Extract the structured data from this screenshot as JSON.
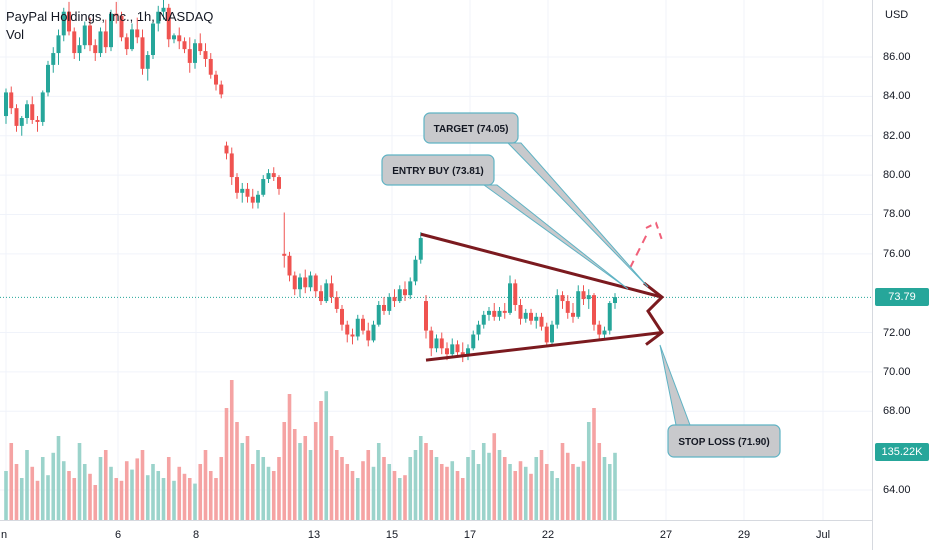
{
  "legend": {
    "symbol": "PayPal Holdings, Inc., 1h, NASDAQ",
    "volume_label": "Vol"
  },
  "price_axis": {
    "unit": "USD",
    "ticks": [
      "86.00",
      "84.00",
      "82.00",
      "80.00",
      "78.00",
      "76.00",
      "72.00",
      "70.00",
      "68.00",
      "64.00"
    ],
    "current_price": "73.79",
    "current_volume": "135.22K"
  },
  "time_axis": {
    "ticks": [
      "n",
      "6",
      "8",
      "13",
      "15",
      "17",
      "22",
      "27",
      "29",
      "Jul"
    ]
  },
  "annotations": {
    "target": "TARGET (74.05)",
    "entry": "ENTRY BUY (73.81)",
    "stop": "STOP LOSS (71.90)"
  },
  "colors": {
    "up": "#26a69a",
    "down": "#ef5350",
    "up_volume": "#9bd3cb",
    "down_volume": "#f5a3a3",
    "trendline": "#7b1a1f",
    "callout_fill": "#c8c9cc",
    "callout_border": "#5fb3c4",
    "price_badge": "#26a69a"
  },
  "chart_data": {
    "type": "candlestick",
    "x_unit": "hourly bars",
    "y_range": [
      63,
      89
    ],
    "candles": [
      [
        83,
        84.4,
        82.6,
        84.2
      ],
      [
        84.2,
        84.5,
        83.1,
        83.4
      ],
      [
        83.4,
        83.6,
        82.2,
        82.5
      ],
      [
        82.5,
        83,
        82,
        82.9
      ],
      [
        82.9,
        83.8,
        82.6,
        83.6
      ],
      [
        83.6,
        84,
        82.6,
        82.8
      ],
      [
        82.8,
        83,
        82.2,
        82.7
      ],
      [
        82.7,
        84.3,
        82.5,
        84.2
      ],
      [
        84.2,
        85.8,
        84,
        85.6
      ],
      [
        85.6,
        86.5,
        85.2,
        86.2
      ],
      [
        86.2,
        87.4,
        85.6,
        87.1
      ],
      [
        87.1,
        88.5,
        86.8,
        88.3
      ],
      [
        88.3,
        88.8,
        87.1,
        87.3
      ],
      [
        87.3,
        87.5,
        85.9,
        86.2
      ],
      [
        86.2,
        87,
        85.8,
        86.6
      ],
      [
        86.6,
        87.8,
        86.4,
        87.6
      ],
      [
        87.6,
        88,
        86.3,
        86.6
      ],
      [
        86.6,
        86.9,
        85.8,
        86.2
      ],
      [
        86.2,
        87.5,
        86,
        87.3
      ],
      [
        87.3,
        87.9,
        86.2,
        86.5
      ],
      [
        86.5,
        88.4,
        86.3,
        88.2
      ],
      [
        88.2,
        88.8,
        87.7,
        88.1
      ],
      [
        88.1,
        88.3,
        86.8,
        87
      ],
      [
        87,
        87.2,
        86.1,
        86.4
      ],
      [
        86.4,
        87.7,
        86.3,
        87.4
      ],
      [
        87.4,
        88,
        86.7,
        87
      ],
      [
        87,
        87.4,
        85.1,
        85.4
      ],
      [
        85.4,
        86.3,
        84.8,
        86.1
      ],
      [
        86.1,
        87.9,
        85.9,
        87.7
      ],
      [
        87.7,
        88.6,
        87.3,
        88.3
      ],
      [
        88.3,
        89,
        87.9,
        88.5
      ],
      [
        88.5,
        88.7,
        86.5,
        86.9
      ],
      [
        86.9,
        87.2,
        86.7,
        87.1
      ],
      [
        87.1,
        87.5,
        86.4,
        86.8
      ],
      [
        86.8,
        87,
        86.2,
        86.4
      ],
      [
        86.4,
        87,
        85.2,
        85.7
      ],
      [
        85.7,
        86.9,
        85.4,
        86.7
      ],
      [
        86.7,
        87.2,
        86.1,
        86.3
      ],
      [
        86.3,
        86.7,
        85.5,
        85.9
      ],
      [
        85.9,
        86.2,
        84.9,
        85.1
      ],
      [
        85.1,
        85.3,
        84.3,
        84.6
      ],
      [
        84.6,
        84.8,
        83.9,
        84.1
      ],
      [
        81.5,
        81.7,
        80.8,
        81.1
      ],
      [
        81.1,
        81.4,
        79.5,
        79.9
      ],
      [
        79.9,
        80.1,
        78.8,
        79.1
      ],
      [
        79.1,
        79.6,
        78.6,
        79.3
      ],
      [
        79.3,
        79.6,
        78.6,
        78.9
      ],
      [
        78.9,
        79.3,
        78.3,
        78.6
      ],
      [
        78.6,
        79.2,
        78.3,
        79
      ],
      [
        79,
        80,
        78.9,
        79.8
      ],
      [
        79.8,
        80.3,
        79.6,
        80.1
      ],
      [
        80.1,
        80.4,
        79.7,
        79.9
      ],
      [
        79.9,
        80,
        79,
        79.3
      ],
      [
        76,
        78.1,
        75.3,
        75.9
      ],
      [
        75.9,
        76.1,
        74.6,
        74.9
      ],
      [
        74.9,
        75.1,
        73.9,
        74.2
      ],
      [
        74.2,
        75,
        73.8,
        74.8
      ],
      [
        74.8,
        75.2,
        74,
        74.3
      ],
      [
        74.3,
        75.1,
        74.1,
        74.9
      ],
      [
        74.9,
        75,
        73.8,
        74.1
      ],
      [
        74.1,
        74.4,
        73.4,
        73.6
      ],
      [
        73.6,
        74.7,
        73.5,
        74.5
      ],
      [
        74.5,
        74.9,
        73.5,
        73.8
      ],
      [
        73.8,
        74.1,
        73,
        73.2
      ],
      [
        73.2,
        73.4,
        72.1,
        72.4
      ],
      [
        72.4,
        72.6,
        71.5,
        71.9
      ],
      [
        71.9,
        72.2,
        71.4,
        71.8
      ],
      [
        71.8,
        72.9,
        71.6,
        72.7
      ],
      [
        72.7,
        72.9,
        71.9,
        72.1
      ],
      [
        72.1,
        72.5,
        71.3,
        71.6
      ],
      [
        71.6,
        72.6,
        71.5,
        72.4
      ],
      [
        72.4,
        73.6,
        72.3,
        73.4
      ],
      [
        73.4,
        73.8,
        72.9,
        73.1
      ],
      [
        73.1,
        74,
        72.9,
        73.8
      ],
      [
        73.8,
        74.2,
        73.3,
        73.6
      ],
      [
        73.6,
        74.4,
        73.5,
        74.2
      ],
      [
        74.2,
        74.6,
        73.6,
        73.9
      ],
      [
        73.9,
        74.8,
        73.7,
        74.6
      ],
      [
        74.6,
        75.9,
        74.4,
        75.7
      ],
      [
        75.7,
        77.1,
        75.5,
        76.8
      ],
      [
        73.6,
        73.9,
        71.7,
        72.1
      ],
      [
        72.1,
        72.3,
        70.8,
        71.2
      ],
      [
        71.2,
        71.9,
        71,
        71.7
      ],
      [
        71.7,
        72,
        70.9,
        71.2
      ],
      [
        71.2,
        71.5,
        70.6,
        70.9
      ],
      [
        70.9,
        71.7,
        70.7,
        71.4
      ],
      [
        71.4,
        71.6,
        70.8,
        71
      ],
      [
        71,
        71.5,
        70.5,
        70.8
      ],
      [
        70.8,
        71.4,
        70.6,
        71.2
      ],
      [
        71.2,
        72.1,
        71.1,
        71.9
      ],
      [
        71.9,
        72.6,
        71.6,
        72.4
      ],
      [
        72.4,
        73.1,
        72.2,
        72.9
      ],
      [
        72.9,
        73.3,
        72.6,
        73.1
      ],
      [
        73.1,
        73.5,
        72.6,
        72.8
      ],
      [
        72.8,
        73.3,
        72.6,
        73.1
      ],
      [
        73.1,
        73.5,
        72.7,
        73
      ],
      [
        73,
        74.9,
        72.9,
        74.5
      ],
      [
        74.5,
        74.7,
        73.1,
        73.4
      ],
      [
        73.4,
        73.7,
        72.4,
        72.7
      ],
      [
        72.7,
        73.2,
        72.5,
        73
      ],
      [
        73,
        73.2,
        72.4,
        72.6
      ],
      [
        72.6,
        73,
        72.2,
        72.8
      ],
      [
        72.8,
        73,
        72.1,
        72.3
      ],
      [
        72.3,
        72.5,
        71.3,
        71.5
      ],
      [
        71.5,
        72.6,
        71.4,
        72.4
      ],
      [
        72.4,
        74.2,
        72.2,
        73.9
      ],
      [
        73.9,
        74.1,
        73.2,
        73.6
      ],
      [
        73.6,
        73.9,
        72.7,
        73
      ],
      [
        73,
        73.5,
        72.5,
        72.8
      ],
      [
        72.8,
        74.4,
        72.7,
        74.1
      ],
      [
        74.1,
        74.4,
        73.4,
        73.7
      ],
      [
        73.7,
        74.2,
        73.2,
        73.9
      ],
      [
        73.9,
        74,
        72.1,
        72.4
      ],
      [
        72.4,
        72.6,
        71.6,
        71.9
      ],
      [
        71.9,
        72.3,
        71.6,
        72.1
      ],
      [
        72.1,
        73.6,
        71.9,
        73.5
      ],
      [
        73.5,
        74,
        73.2,
        73.8
      ]
    ],
    "volumes_pct_of_panel": [
      0.35,
      0.55,
      0.4,
      0.3,
      0.5,
      0.38,
      0.28,
      0.45,
      0.32,
      0.48,
      0.6,
      0.42,
      0.35,
      0.3,
      0.55,
      0.4,
      0.33,
      0.25,
      0.45,
      0.5,
      0.38,
      0.3,
      0.28,
      0.42,
      0.36,
      0.44,
      0.5,
      0.32,
      0.4,
      0.35,
      0.3,
      0.45,
      0.28,
      0.38,
      0.33,
      0.3,
      0.26,
      0.4,
      0.5,
      0.35,
      0.3,
      0.45,
      0.8,
      1.0,
      0.7,
      0.55,
      0.6,
      0.4,
      0.5,
      0.45,
      0.38,
      0.35,
      0.45,
      0.7,
      0.9,
      0.65,
      0.55,
      0.6,
      0.5,
      0.7,
      0.85,
      0.92,
      0.6,
      0.5,
      0.45,
      0.4,
      0.35,
      0.3,
      0.42,
      0.5,
      0.38,
      0.55,
      0.45,
      0.4,
      0.35,
      0.3,
      0.32,
      0.45,
      0.5,
      0.6,
      0.55,
      0.5,
      0.45,
      0.4,
      0.38,
      0.42,
      0.35,
      0.3,
      0.45,
      0.5,
      0.4,
      0.55,
      0.48,
      0.62,
      0.5,
      0.45,
      0.4,
      0.35,
      0.42,
      0.38,
      0.33,
      0.45,
      0.5,
      0.4,
      0.35,
      0.3,
      0.55,
      0.48,
      0.4,
      0.38,
      0.42,
      0.7,
      0.8,
      0.55,
      0.45,
      0.4,
      0.48,
      0.62
    ],
    "current_price_line": 73.79,
    "patterns": [
      {
        "type": "triangle",
        "upper": [
          [
            79,
            77
          ],
          [
            116,
            73.8
          ]
        ],
        "lower": [
          [
            80,
            70.6
          ],
          [
            116,
            72
          ]
        ],
        "apex": [
          116,
          73.8
        ]
      },
      {
        "type": "projection",
        "from": [
          113,
          75.2
        ],
        "to": [
          115,
          77.7
        ]
      }
    ]
  }
}
